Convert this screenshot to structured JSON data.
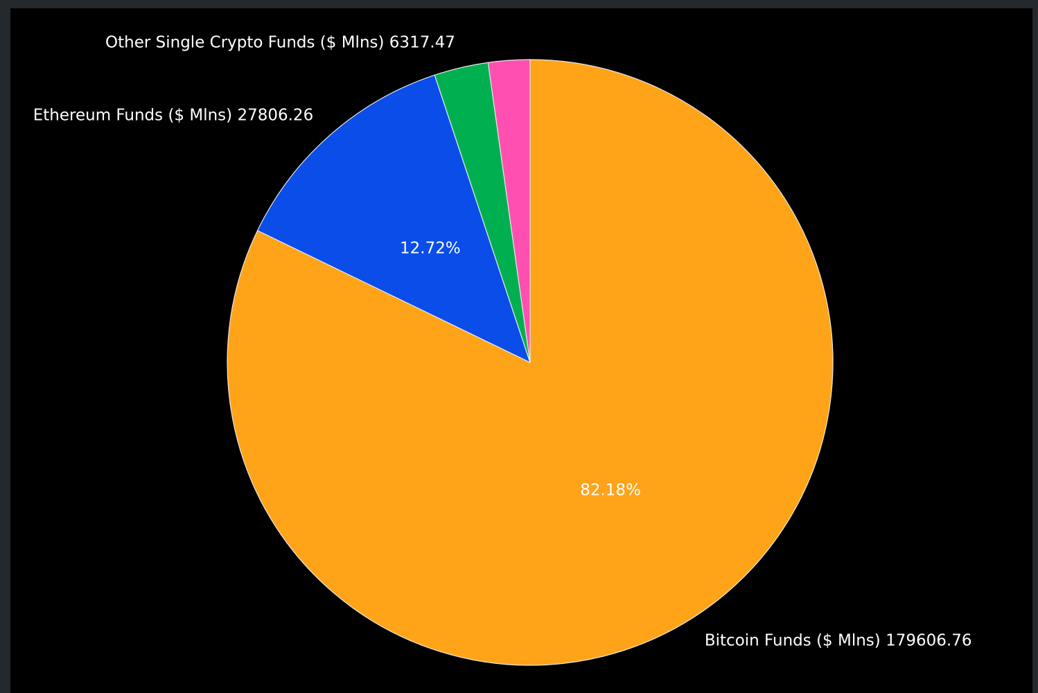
{
  "chart_data": {
    "type": "pie",
    "categories": [
      "Bitcoin Funds ($ Mlns)",
      "Ethereum Funds ($ Mlns)",
      "Other Single Crypto Funds ($ Mlns)",
      null
    ],
    "values": [
      179606.76,
      27806.26,
      6317.47,
      4840
    ],
    "show_values": [
      true,
      true,
      true,
      false
    ],
    "percent_labels": [
      "82.18%",
      "12.72%",
      null,
      null
    ],
    "colors": [
      "#ffa319",
      "#0a4de8",
      "#00b050",
      "#ff4fb0"
    ]
  }
}
